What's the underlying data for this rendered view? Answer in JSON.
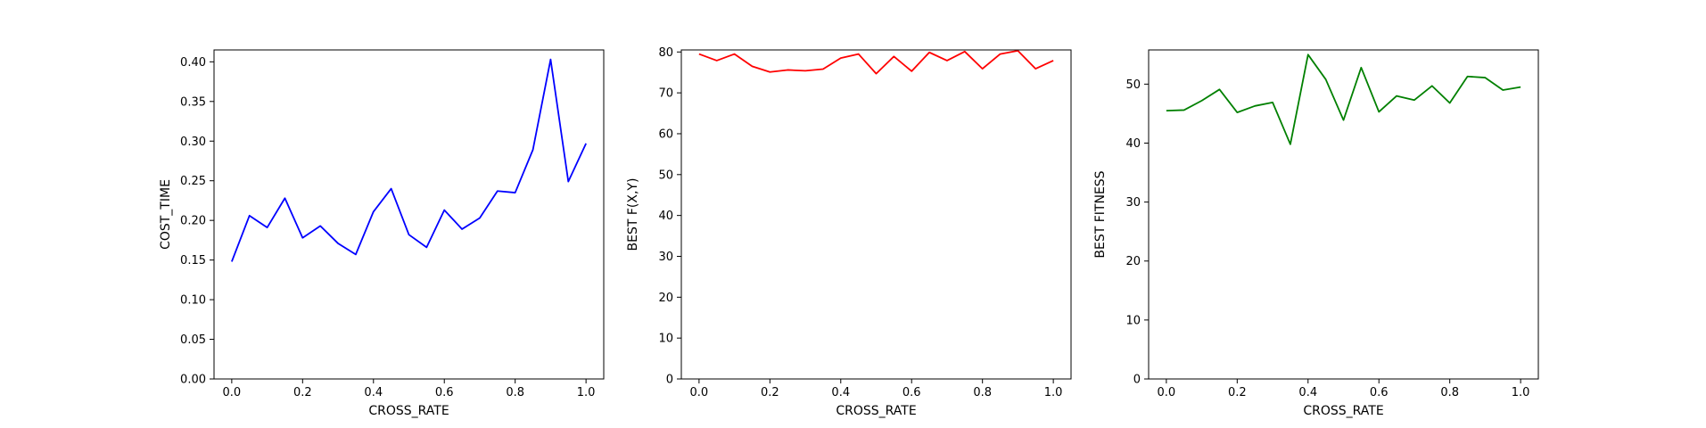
{
  "chart_data": [
    {
      "type": "line",
      "xlabel": "CROSS_RATE",
      "ylabel": "COST_TIME",
      "color": "#0000ff",
      "xlim": [
        -0.05,
        1.05
      ],
      "ylim": [
        0.0,
        0.415
      ],
      "xticks": [
        "0.0",
        "0.2",
        "0.4",
        "0.6",
        "0.8",
        "1.0"
      ],
      "yticks": [
        "0.00",
        "0.05",
        "0.10",
        "0.15",
        "0.20",
        "0.25",
        "0.30",
        "0.35",
        "0.40"
      ],
      "x": [
        0.0,
        0.05,
        0.1,
        0.15,
        0.2,
        0.25,
        0.3,
        0.35,
        0.4,
        0.45,
        0.5,
        0.55,
        0.6,
        0.65,
        0.7,
        0.75,
        0.8,
        0.85,
        0.9,
        0.95,
        1.0
      ],
      "values": [
        0.148,
        0.206,
        0.191,
        0.228,
        0.178,
        0.193,
        0.171,
        0.157,
        0.211,
        0.24,
        0.182,
        0.166,
        0.213,
        0.189,
        0.203,
        0.237,
        0.235,
        0.289,
        0.403,
        0.249,
        0.297
      ]
    },
    {
      "type": "line",
      "xlabel": "CROSS_RATE",
      "ylabel": "BEST F(X,Y)",
      "color": "#ff0000",
      "xlim": [
        -0.05,
        1.05
      ],
      "ylim": [
        0,
        80.5
      ],
      "xticks": [
        "0.0",
        "0.2",
        "0.4",
        "0.6",
        "0.8",
        "1.0"
      ],
      "yticks": [
        "0",
        "10",
        "20",
        "30",
        "40",
        "50",
        "60",
        "70",
        "80"
      ],
      "x": [
        0.0,
        0.05,
        0.1,
        0.15,
        0.2,
        0.25,
        0.3,
        0.35,
        0.4,
        0.45,
        0.5,
        0.55,
        0.6,
        0.65,
        0.7,
        0.75,
        0.8,
        0.85,
        0.9,
        0.95,
        1.0
      ],
      "values": [
        79.5,
        77.9,
        79.5,
        76.5,
        75.1,
        75.6,
        75.4,
        75.8,
        78.5,
        79.5,
        74.7,
        78.9,
        75.3,
        79.9,
        77.9,
        80.1,
        75.9,
        79.5,
        80.3,
        75.9,
        77.9
      ]
    },
    {
      "type": "line",
      "xlabel": "CROSS_RATE",
      "ylabel": "BEST FITNESS",
      "color": "#008000",
      "xlim": [
        -0.05,
        1.05
      ],
      "ylim": [
        0,
        55.8
      ],
      "xticks": [
        "0.0",
        "0.2",
        "0.4",
        "0.6",
        "0.8",
        "1.0"
      ],
      "yticks": [
        "0",
        "10",
        "20",
        "30",
        "40",
        "50"
      ],
      "x": [
        0.0,
        0.05,
        0.1,
        0.15,
        0.2,
        0.25,
        0.3,
        0.35,
        0.4,
        0.45,
        0.5,
        0.55,
        0.6,
        0.65,
        0.7,
        0.75,
        0.8,
        0.85,
        0.9,
        0.95,
        1.0
      ],
      "values": [
        45.5,
        45.6,
        47.2,
        49.1,
        45.2,
        46.3,
        46.9,
        39.8,
        55.0,
        50.8,
        43.9,
        52.8,
        45.3,
        48.0,
        47.3,
        49.7,
        46.8,
        51.3,
        51.1,
        49.0,
        49.5
      ]
    }
  ]
}
